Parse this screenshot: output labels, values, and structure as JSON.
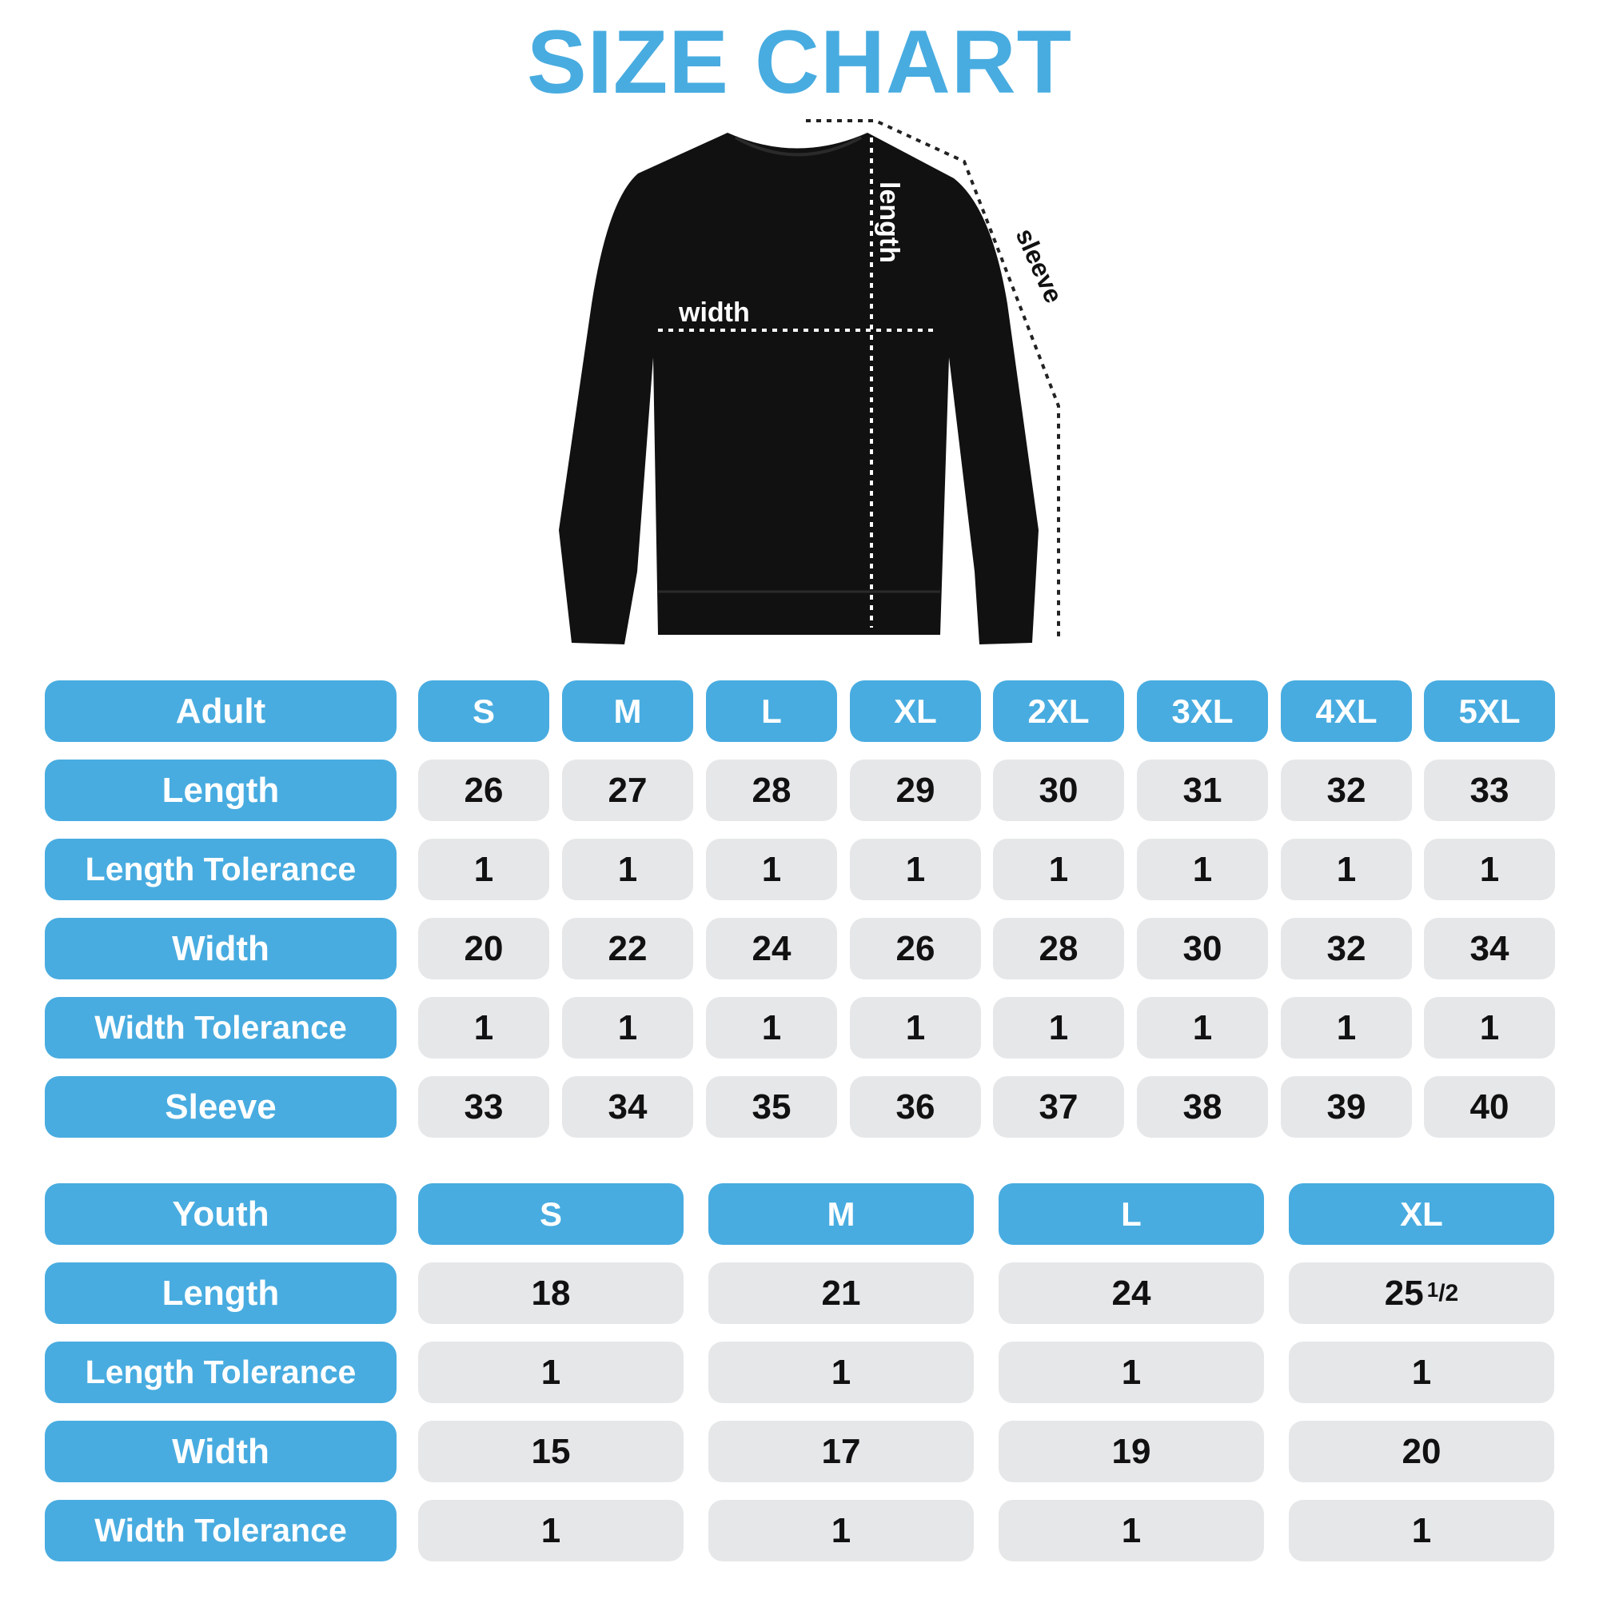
{
  "title": "SIZE CHART",
  "colors": {
    "accent": "#48ACE0",
    "cell": "#E6E7E9",
    "garment": "#111111"
  },
  "diagram": {
    "width_label": "width",
    "length_label": "length",
    "sleeve_label": "sleeve"
  },
  "adult": {
    "header": "Adult",
    "sizes": [
      "S",
      "M",
      "L",
      "XL",
      "2XL",
      "3XL",
      "4XL",
      "5XL"
    ],
    "rows": [
      {
        "label": "Length",
        "values": [
          "26",
          "27",
          "28",
          "29",
          "30",
          "31",
          "32",
          "33"
        ]
      },
      {
        "label": "Length Tolerance",
        "values": [
          "1",
          "1",
          "1",
          "1",
          "1",
          "1",
          "1",
          "1"
        ]
      },
      {
        "label": "Width",
        "values": [
          "20",
          "22",
          "24",
          "26",
          "28",
          "30",
          "32",
          "34"
        ]
      },
      {
        "label": "Width Tolerance",
        "values": [
          "1",
          "1",
          "1",
          "1",
          "1",
          "1",
          "1",
          "1"
        ]
      },
      {
        "label": "Sleeve",
        "values": [
          "33",
          "34",
          "35",
          "36",
          "37",
          "38",
          "39",
          "40"
        ]
      }
    ]
  },
  "youth": {
    "header": "Youth",
    "sizes": [
      "S",
      "M",
      "L",
      "XL"
    ],
    "rows": [
      {
        "label": "Length",
        "values": [
          "18",
          "21",
          "24",
          "25 1/2"
        ]
      },
      {
        "label": "Length Tolerance",
        "values": [
          "1",
          "1",
          "1",
          "1"
        ]
      },
      {
        "label": "Width",
        "values": [
          "15",
          "17",
          "19",
          "20"
        ]
      },
      {
        "label": "Width Tolerance",
        "values": [
          "1",
          "1",
          "1",
          "1"
        ]
      }
    ]
  }
}
